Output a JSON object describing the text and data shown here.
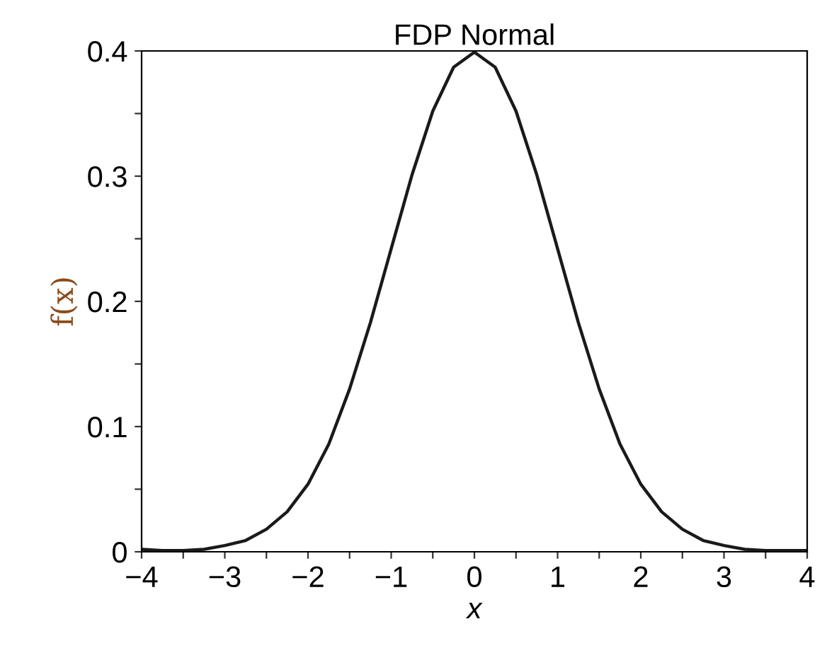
{
  "chart_data": {
    "type": "line",
    "title": "FDP Normal",
    "xlabel": "x",
    "ylabel": "f(x)",
    "x": [
      -4,
      -3.75,
      -3.5,
      -3.25,
      -3,
      -2.75,
      -2.5,
      -2.25,
      -2,
      -1.75,
      -1.5,
      -1.25,
      -1,
      -0.75,
      -0.5,
      -0.25,
      0,
      0.25,
      0.5,
      0.75,
      1,
      1.25,
      1.5,
      1.75,
      2,
      2.25,
      2.5,
      2.75,
      3,
      3.25,
      3.5,
      3.75,
      4
    ],
    "series": [
      {
        "color": "#1a1a1a",
        "values": [
          0.002,
          0.001,
          0.001,
          0.002,
          0.005,
          0.009,
          0.018,
          0.032,
          0.054,
          0.086,
          0.13,
          0.183,
          0.242,
          0.301,
          0.352,
          0.387,
          0.399,
          0.387,
          0.352,
          0.301,
          0.242,
          0.183,
          0.13,
          0.086,
          0.054,
          0.032,
          0.018,
          0.009,
          0.005,
          0.002,
          0.001,
          0.001,
          0.001
        ]
      }
    ],
    "xlim": [
      -4,
      4
    ],
    "ylim": [
      0,
      0.4
    ],
    "xticks": [
      {
        "value": -4,
        "label": "−4"
      },
      {
        "value": -3.5,
        "label": null
      },
      {
        "value": -3,
        "label": "−3"
      },
      {
        "value": -2.5,
        "label": null
      },
      {
        "value": -2,
        "label": "−2"
      },
      {
        "value": -1.5,
        "label": null
      },
      {
        "value": -1,
        "label": "−1"
      },
      {
        "value": -0.5,
        "label": null
      },
      0,
      {
        "value": 0.5,
        "label": null
      },
      1,
      {
        "value": 1.5,
        "label": null
      },
      2,
      {
        "value": 2.5,
        "label": null
      },
      3,
      {
        "value": 3.5,
        "label": null
      },
      4
    ],
    "yticks": [
      0,
      {
        "value": 0.05,
        "label": null
      },
      0.1,
      {
        "value": 0.15,
        "label": null
      },
      0.2,
      {
        "value": 0.25,
        "label": null
      },
      0.3,
      {
        "value": 0.35,
        "label": null
      },
      0.4
    ],
    "grid": false,
    "legend": false,
    "marker": "none",
    "line_style": "solid"
  }
}
